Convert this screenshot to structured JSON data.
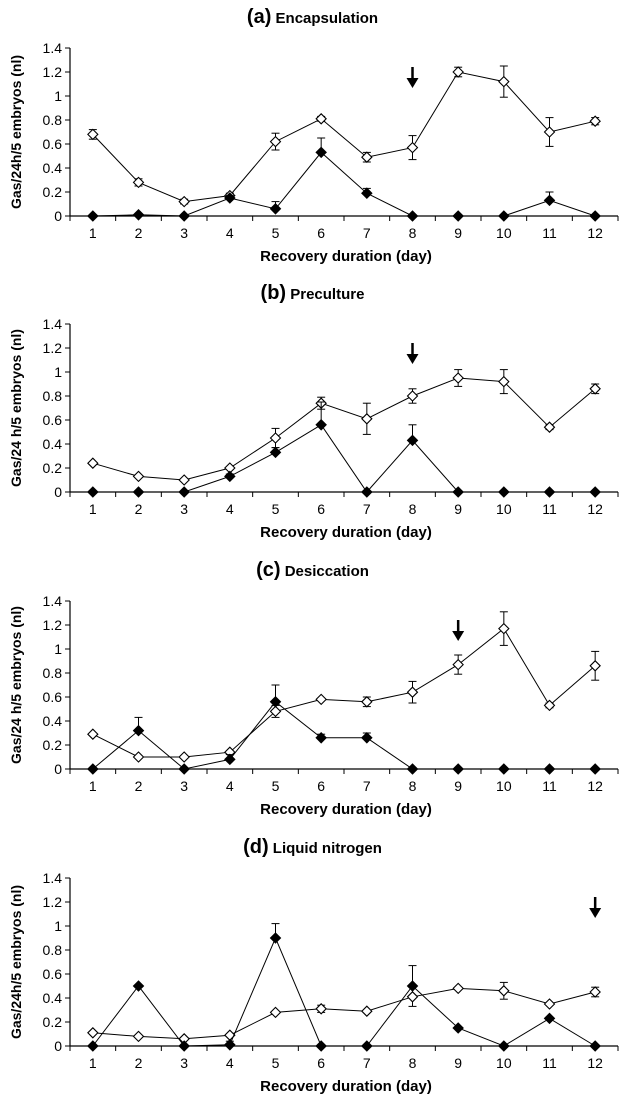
{
  "chart_data": [
    {
      "type": "line",
      "panel_label": "(a)",
      "title": "Encapsulation",
      "xlabel": "Recovery duration (day)",
      "ylabel": "Gas/24h/5 embryos (nl)",
      "x": [
        1,
        2,
        3,
        4,
        5,
        6,
        7,
        8,
        9,
        10,
        11,
        12
      ],
      "xticks": [
        "1",
        "2",
        "3",
        "4",
        "5",
        "6",
        "7",
        "8",
        "9",
        "10",
        "11",
        "12"
      ],
      "ylim": [
        0,
        1.4
      ],
      "yticks": [
        "0",
        "0.2",
        "0.4",
        "0.6",
        "0.8",
        "1",
        "1.2",
        "1.4"
      ],
      "arrow_at": 8,
      "series": [
        {
          "marker": "open-diamond",
          "values": [
            0.68,
            0.28,
            0.12,
            0.17,
            0.62,
            0.81,
            0.49,
            0.57,
            1.2,
            1.12,
            0.7,
            0.79
          ],
          "errors": [
            0.04,
            0.03,
            0.02,
            0.02,
            0.07,
            0.02,
            0.04,
            0.1,
            0.04,
            0.13,
            0.12,
            0.03
          ]
        },
        {
          "marker": "filled-diamond",
          "values": [
            0,
            0.01,
            0,
            0.15,
            0.06,
            0.53,
            0.19,
            0,
            0,
            0,
            0.13,
            0
          ],
          "errors": [
            0,
            0,
            0,
            0.02,
            0.06,
            0.12,
            0.04,
            0,
            0,
            0,
            0.07,
            0
          ]
        }
      ]
    },
    {
      "type": "line",
      "panel_label": "(b)",
      "title": "Preculture",
      "xlabel": "Recovery duration (day)",
      "ylabel": "Gas/24 h/5 embryos (nl)",
      "x": [
        1,
        2,
        3,
        4,
        5,
        6,
        7,
        8,
        9,
        10,
        11,
        12
      ],
      "xticks": [
        "1",
        "2",
        "3",
        "4",
        "5",
        "6",
        "7",
        "8",
        "9",
        "10",
        "11",
        "12"
      ],
      "ylim": [
        0,
        1.4
      ],
      "yticks": [
        "0",
        "0.2",
        "0.4",
        "0.6",
        "0.8",
        "1",
        "1.2",
        "1.4"
      ],
      "arrow_at": 8,
      "series": [
        {
          "marker": "open-diamond",
          "values": [
            0.24,
            0.13,
            0.1,
            0.2,
            0.45,
            0.74,
            0.61,
            0.8,
            0.95,
            0.92,
            0.54,
            0.86
          ],
          "errors": [
            0,
            0,
            0,
            0,
            0.08,
            0.05,
            0.13,
            0.06,
            0.07,
            0.1,
            0.02,
            0.04
          ]
        },
        {
          "marker": "filled-diamond",
          "values": [
            0,
            0,
            0,
            0.13,
            0.33,
            0.56,
            0,
            0.43,
            0,
            0,
            0,
            0
          ],
          "errors": [
            0,
            0,
            0,
            0.02,
            0.04,
            0.19,
            0,
            0.13,
            0,
            0,
            0,
            0
          ]
        }
      ]
    },
    {
      "type": "line",
      "panel_label": "(c)",
      "title": "Desiccation",
      "xlabel": "Recovery duration (day)",
      "ylabel": "Gas/24 h/5 embryos (nl)",
      "x": [
        1,
        2,
        3,
        4,
        5,
        6,
        7,
        8,
        9,
        10,
        11,
        12
      ],
      "xticks": [
        "1",
        "2",
        "3",
        "4",
        "5",
        "6",
        "7",
        "8",
        "9",
        "10",
        "11",
        "12"
      ],
      "ylim": [
        0,
        1.4
      ],
      "yticks": [
        "0",
        "0.2",
        "0.4",
        "0.6",
        "0.8",
        "1",
        "1.2",
        "1.4"
      ],
      "arrow_at": 9,
      "series": [
        {
          "marker": "open-diamond",
          "values": [
            0.29,
            0.1,
            0.1,
            0.14,
            0.48,
            0.58,
            0.56,
            0.64,
            0.87,
            1.17,
            0.53,
            0.86
          ],
          "errors": [
            0,
            0,
            0,
            0,
            0.05,
            0,
            0.04,
            0.09,
            0.08,
            0.14,
            0.02,
            0.12
          ]
        },
        {
          "marker": "filled-diamond",
          "values": [
            0,
            0.32,
            0,
            0.08,
            0.56,
            0.26,
            0.26,
            0,
            0,
            0,
            0,
            0
          ],
          "errors": [
            0,
            0.11,
            0,
            0.04,
            0.14,
            0.03,
            0.04,
            0,
            0,
            0,
            0,
            0
          ]
        }
      ]
    },
    {
      "type": "line",
      "panel_label": "(d)",
      "title": "Liquid nitrogen",
      "xlabel": "Recovery duration (day)",
      "ylabel": "Gas/24h/5 embryos (nl)",
      "x": [
        1,
        2,
        3,
        4,
        5,
        6,
        7,
        8,
        9,
        10,
        11,
        12
      ],
      "xticks": [
        "1",
        "2",
        "3",
        "4",
        "5",
        "6",
        "7",
        "8",
        "9",
        "10",
        "11",
        "12"
      ],
      "ylim": [
        0,
        1.4
      ],
      "yticks": [
        "0",
        "0.2",
        "0.4",
        "0.6",
        "0.8",
        "1",
        "1.2",
        "1.4"
      ],
      "arrow_at": 12,
      "series": [
        {
          "marker": "open-diamond",
          "values": [
            0.11,
            0.08,
            0.06,
            0.09,
            0.28,
            0.31,
            0.29,
            0.41,
            0.48,
            0.46,
            0.35,
            0.45
          ],
          "errors": [
            0,
            0,
            0,
            0,
            0,
            0.03,
            0,
            0.08,
            0,
            0.07,
            0,
            0.04
          ]
        },
        {
          "marker": "filled-diamond",
          "values": [
            0,
            0.5,
            0,
            0.01,
            0.9,
            0,
            0,
            0.5,
            0.15,
            0,
            0.23,
            0
          ],
          "errors": [
            0,
            0,
            0,
            0.03,
            0.12,
            0,
            0,
            0.17,
            0,
            0,
            0,
            0
          ]
        }
      ]
    }
  ]
}
